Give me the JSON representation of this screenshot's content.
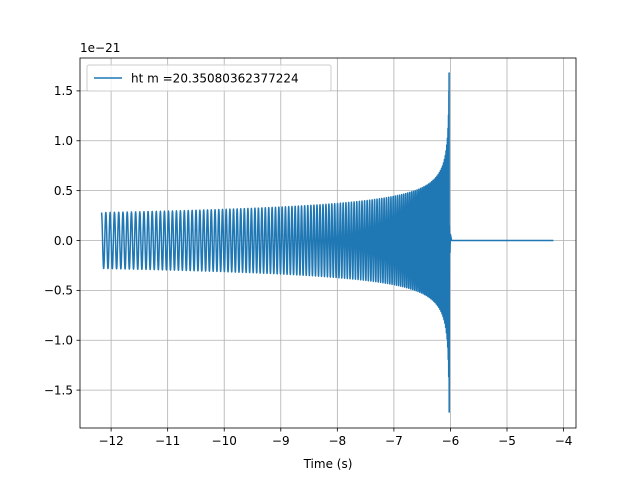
{
  "chart_data": {
    "type": "line",
    "title": "",
    "xlabel": "Time (s)",
    "ylabel": "",
    "y_scale_label": "1e−21",
    "xlim": [
      -12.55,
      -3.78
    ],
    "ylim": [
      -1.88,
      1.83
    ],
    "x_ticks": [
      {
        "value": -12,
        "label": "−12"
      },
      {
        "value": -11,
        "label": "−11"
      },
      {
        "value": -10,
        "label": "−10"
      },
      {
        "value": -9,
        "label": "−9"
      },
      {
        "value": -8,
        "label": "−8"
      },
      {
        "value": -7,
        "label": "−7"
      },
      {
        "value": -6,
        "label": "−6"
      },
      {
        "value": -5,
        "label": "−5"
      },
      {
        "value": -4,
        "label": "−4"
      }
    ],
    "y_ticks": [
      {
        "value": -1.5,
        "label": "−1.5"
      },
      {
        "value": -1.0,
        "label": "−1.0"
      },
      {
        "value": -0.5,
        "label": "−0.5"
      },
      {
        "value": 0.0,
        "label": "0.0"
      },
      {
        "value": 0.5,
        "label": "0.5"
      },
      {
        "value": 1.0,
        "label": "1.0"
      },
      {
        "value": 1.5,
        "label": "1.5"
      }
    ],
    "grid": true,
    "legend": {
      "position": "top-left",
      "entries": [
        "ht m =20.35080362377224"
      ]
    },
    "series": [
      {
        "name": "ht m =20.35080362377224",
        "color": "#1f77b4",
        "signal": "chirp",
        "t_start": -12.17,
        "t_merger": -6.02,
        "t_end": -4.18,
        "amplitude_start": 0.28,
        "amplitude_peak_max": 1.68,
        "amplitude_peak_min": -1.72,
        "post_merger_value": 0.0,
        "samples": [
          {
            "x": -12.17,
            "y": 0.28
          },
          {
            "x": -11.0,
            "y": 0.29
          },
          {
            "x": -10.0,
            "y": 0.31
          },
          {
            "x": -9.0,
            "y": 0.34
          },
          {
            "x": -8.0,
            "y": 0.38
          },
          {
            "x": -7.0,
            "y": 0.45
          },
          {
            "x": -6.5,
            "y": 0.55
          },
          {
            "x": -6.2,
            "y": 0.75
          },
          {
            "x": -6.05,
            "y": 1.68
          },
          {
            "x": -6.02,
            "y": 0.0
          },
          {
            "x": -4.18,
            "y": 0.0
          }
        ]
      }
    ]
  }
}
